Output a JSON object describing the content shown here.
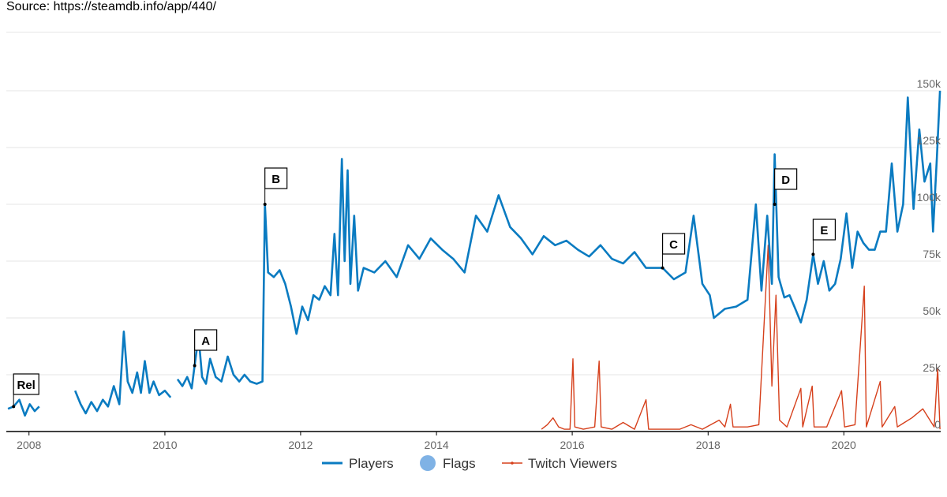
{
  "source_text": "Source: https://steamdb.info/app/440/",
  "colors": {
    "players": "#0a7bc1",
    "flags": "#7fb2e5",
    "twitch": "#d6401c",
    "grid": "#e6e6e6",
    "axis": "#000000"
  },
  "chart_data": {
    "type": "line",
    "xlim": [
      "2007-09-01",
      "2021-06-05"
    ],
    "ylim": [
      0,
      150000
    ],
    "x_ticks": [
      "2008",
      "2010",
      "2012",
      "2014",
      "2016",
      "2018",
      "2020"
    ],
    "y_ticks": [
      {
        "value": 0,
        "label": "0"
      },
      {
        "value": 25000,
        "label": "25k"
      },
      {
        "value": 50000,
        "label": "50k"
      },
      {
        "value": 75000,
        "label": "75k"
      },
      {
        "value": 100000,
        "label": "100k"
      },
      {
        "value": 125000,
        "label": "125k"
      },
      {
        "value": 150000,
        "label": "150k"
      }
    ],
    "grid": true,
    "legend": "bottom-center",
    "legend_items": [
      {
        "name": "Players",
        "type": "line"
      },
      {
        "name": "Flags",
        "type": "dot"
      },
      {
        "name": "Twitch Viewers",
        "type": "line-thin"
      }
    ],
    "flags": [
      {
        "label": "Rel",
        "date": "2007-10-10",
        "value": 11000
      },
      {
        "label": "A",
        "date": "2010-06-10",
        "value": 29000
      },
      {
        "label": "B",
        "date": "2011-06-23",
        "value": 100000
      },
      {
        "label": "C",
        "date": "2017-05-01",
        "value": 72000
      },
      {
        "label": "D",
        "date": "2018-12-25",
        "value": 100000
      },
      {
        "label": "E",
        "date": "2019-07-20",
        "value": 78000
      }
    ],
    "series": [
      {
        "name": "Players",
        "points": [
          [
            "2007-09-10",
            10000
          ],
          [
            "2007-10-10",
            11000
          ],
          [
            "2007-11-10",
            14000
          ],
          [
            "2007-12-10",
            7000
          ],
          [
            "2008-01-05",
            12000
          ],
          [
            "2008-02-01",
            9000
          ],
          [
            "2008-02-25",
            11000
          ],
          null,
          [
            "2008-09-05",
            18000
          ],
          [
            "2008-10-05",
            12000
          ],
          [
            "2008-11-01",
            8000
          ],
          [
            "2008-12-01",
            13000
          ],
          [
            "2009-01-01",
            9000
          ],
          [
            "2009-02-01",
            14000
          ],
          [
            "2009-03-01",
            11000
          ],
          [
            "2009-04-01",
            20000
          ],
          [
            "2009-05-01",
            12000
          ],
          [
            "2009-05-25",
            44000
          ],
          [
            "2009-06-15",
            22000
          ],
          [
            "2009-07-10",
            17000
          ],
          [
            "2009-08-05",
            26000
          ],
          [
            "2009-08-25",
            17000
          ],
          [
            "2009-09-15",
            31000
          ],
          [
            "2009-10-10",
            17000
          ],
          [
            "2009-11-01",
            22000
          ],
          [
            "2009-12-01",
            16000
          ],
          [
            "2010-01-01",
            18000
          ],
          [
            "2010-02-01",
            15000
          ],
          null,
          [
            "2010-03-10",
            23000
          ],
          [
            "2010-04-05",
            20000
          ],
          [
            "2010-05-01",
            24000
          ],
          [
            "2010-05-25",
            19000
          ],
          [
            "2010-06-10",
            29000
          ],
          [
            "2010-07-01",
            42000
          ],
          [
            "2010-07-20",
            24000
          ],
          [
            "2010-08-10",
            21000
          ],
          [
            "2010-09-01",
            32000
          ],
          [
            "2010-10-01",
            24000
          ],
          [
            "2010-11-01",
            22000
          ],
          [
            "2010-12-05",
            33000
          ],
          [
            "2011-01-05",
            25000
          ],
          [
            "2011-02-05",
            22000
          ],
          [
            "2011-03-05",
            25000
          ],
          [
            "2011-04-05",
            22000
          ],
          [
            "2011-05-10",
            21000
          ],
          [
            "2011-06-10",
            22000
          ],
          [
            "2011-06-23",
            100000
          ],
          [
            "2011-07-10",
            70000
          ],
          [
            "2011-08-10",
            68000
          ],
          [
            "2011-09-10",
            71000
          ],
          [
            "2011-10-10",
            65000
          ],
          [
            "2011-11-10",
            55000
          ],
          [
            "2011-12-10",
            43000
          ],
          [
            "2012-01-10",
            55000
          ],
          [
            "2012-02-10",
            49000
          ],
          [
            "2012-03-10",
            60000
          ],
          [
            "2012-04-10",
            58000
          ],
          [
            "2012-05-10",
            64000
          ],
          [
            "2012-06-10",
            60000
          ],
          [
            "2012-07-01",
            87000
          ],
          [
            "2012-07-20",
            60000
          ],
          [
            "2012-08-10",
            120000
          ],
          [
            "2012-08-25",
            75000
          ],
          [
            "2012-09-10",
            115000
          ],
          [
            "2012-09-25",
            65000
          ],
          [
            "2012-10-15",
            95000
          ],
          [
            "2012-11-05",
            62000
          ],
          [
            "2012-12-05",
            72000
          ],
          [
            "2013-02-01",
            70000
          ],
          [
            "2013-04-01",
            75000
          ],
          [
            "2013-06-01",
            68000
          ],
          [
            "2013-08-01",
            82000
          ],
          [
            "2013-10-01",
            76000
          ],
          [
            "2013-12-01",
            85000
          ],
          [
            "2014-02-01",
            80000
          ],
          [
            "2014-04-01",
            76000
          ],
          [
            "2014-06-01",
            70000
          ],
          [
            "2014-08-01",
            95000
          ],
          [
            "2014-10-01",
            88000
          ],
          [
            "2014-12-01",
            104000
          ],
          [
            "2015-02-01",
            90000
          ],
          [
            "2015-04-01",
            85000
          ],
          [
            "2015-06-01",
            78000
          ],
          [
            "2015-08-01",
            86000
          ],
          [
            "2015-10-01",
            82000
          ],
          [
            "2015-12-01",
            84000
          ],
          [
            "2016-02-01",
            80000
          ],
          [
            "2016-04-01",
            77000
          ],
          [
            "2016-06-01",
            82000
          ],
          [
            "2016-08-01",
            76000
          ],
          [
            "2016-10-01",
            74000
          ],
          [
            "2016-12-01",
            79000
          ],
          [
            "2017-02-01",
            72000
          ],
          [
            "2017-05-01",
            72000
          ],
          [
            "2017-07-01",
            67000
          ],
          [
            "2017-09-01",
            70000
          ],
          [
            "2017-10-15",
            95000
          ],
          [
            "2017-12-01",
            65000
          ],
          [
            "2018-01-10",
            60000
          ],
          [
            "2018-02-01",
            50000
          ],
          [
            "2018-04-01",
            54000
          ],
          [
            "2018-06-01",
            55000
          ],
          [
            "2018-08-01",
            58000
          ],
          [
            "2018-09-15",
            100000
          ],
          [
            "2018-10-15",
            62000
          ],
          [
            "2018-11-15",
            95000
          ],
          [
            "2018-12-10",
            65000
          ],
          [
            "2018-12-25",
            122000
          ],
          [
            "2019-01-15",
            68000
          ],
          [
            "2019-02-15",
            59000
          ],
          [
            "2019-03-15",
            60000
          ],
          [
            "2019-04-15",
            54000
          ],
          [
            "2019-05-15",
            48000
          ],
          [
            "2019-06-15",
            58000
          ],
          [
            "2019-07-20",
            78000
          ],
          [
            "2019-08-15",
            65000
          ],
          [
            "2019-09-15",
            75000
          ],
          [
            "2019-10-15",
            62000
          ],
          [
            "2019-11-15",
            65000
          ],
          [
            "2019-12-15",
            76000
          ],
          [
            "2020-01-15",
            96000
          ],
          [
            "2020-02-15",
            72000
          ],
          [
            "2020-03-15",
            88000
          ],
          [
            "2020-04-15",
            83000
          ],
          [
            "2020-05-15",
            80000
          ],
          [
            "2020-06-15",
            80000
          ],
          [
            "2020-07-15",
            88000
          ],
          [
            "2020-08-15",
            88000
          ],
          [
            "2020-09-15",
            118000
          ],
          [
            "2020-10-15",
            88000
          ],
          [
            "2020-11-15",
            100000
          ],
          [
            "2020-12-10",
            147000
          ],
          [
            "2021-01-10",
            98000
          ],
          [
            "2021-02-10",
            133000
          ],
          [
            "2021-03-10",
            110000
          ],
          [
            "2021-04-10",
            118000
          ],
          [
            "2021-04-25",
            88000
          ],
          [
            "2021-05-15",
            120000
          ],
          [
            "2021-06-01",
            150000
          ]
        ]
      },
      {
        "name": "Twitch Viewers",
        "points": [
          [
            "2015-07-20",
            1000
          ],
          [
            "2015-08-20",
            3000
          ],
          [
            "2015-09-20",
            6000
          ],
          [
            "2015-10-20",
            2000
          ],
          [
            "2015-11-20",
            1000
          ],
          [
            "2015-12-20",
            1000
          ],
          [
            "2016-01-05",
            32000
          ],
          [
            "2016-01-15",
            2000
          ],
          [
            "2016-03-01",
            1000
          ],
          [
            "2016-05-01",
            2000
          ],
          [
            "2016-05-25",
            31000
          ],
          [
            "2016-06-05",
            2000
          ],
          [
            "2016-08-01",
            1000
          ],
          [
            "2016-10-01",
            4000
          ],
          [
            "2016-12-01",
            1000
          ],
          [
            "2017-02-01",
            14000
          ],
          [
            "2017-02-15",
            1000
          ],
          [
            "2017-05-01",
            1000
          ],
          [
            "2017-08-01",
            1000
          ],
          [
            "2017-10-01",
            3000
          ],
          [
            "2017-12-01",
            1000
          ],
          [
            "2018-03-01",
            5000
          ],
          [
            "2018-04-01",
            2000
          ],
          [
            "2018-05-01",
            12000
          ],
          [
            "2018-05-15",
            2000
          ],
          [
            "2018-08-01",
            2000
          ],
          [
            "2018-10-01",
            3000
          ],
          [
            "2018-11-20",
            82000
          ],
          [
            "2018-12-10",
            20000
          ],
          [
            "2019-01-01",
            60000
          ],
          [
            "2019-01-20",
            5000
          ],
          [
            "2019-03-01",
            2000
          ],
          [
            "2019-05-15",
            19000
          ],
          [
            "2019-05-25",
            2000
          ],
          [
            "2019-07-15",
            20000
          ],
          [
            "2019-07-25",
            2000
          ],
          [
            "2019-10-01",
            2000
          ],
          [
            "2019-12-20",
            18000
          ],
          [
            "2020-01-05",
            2000
          ],
          [
            "2020-03-01",
            3000
          ],
          [
            "2020-04-20",
            64000
          ],
          [
            "2020-05-01",
            2000
          ],
          [
            "2020-07-15",
            22000
          ],
          [
            "2020-07-25",
            2000
          ],
          [
            "2020-10-01",
            11000
          ],
          [
            "2020-10-15",
            2000
          ],
          [
            "2021-01-01",
            6000
          ],
          [
            "2021-03-01",
            10000
          ],
          [
            "2021-05-01",
            2000
          ],
          [
            "2021-05-20",
            28000
          ],
          [
            "2021-06-01",
            1000
          ]
        ]
      }
    ]
  }
}
